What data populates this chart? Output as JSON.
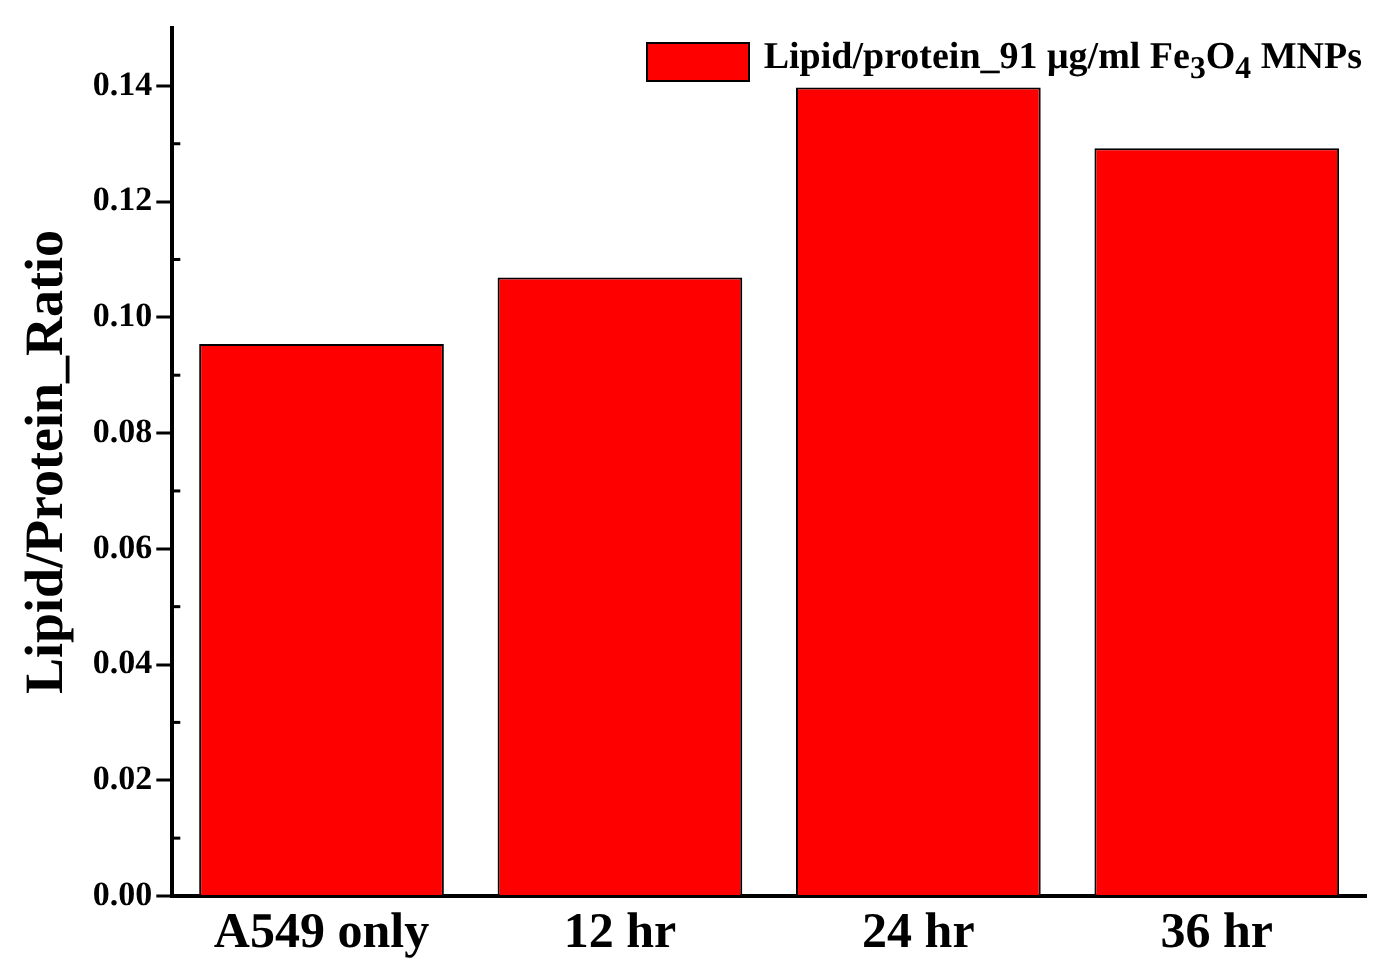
{
  "chart_data": {
    "type": "bar",
    "ylabel": "Lipid/Protein_Ratio",
    "categories": [
      "A549 only",
      "12 hr",
      "24 hr",
      "36 hr"
    ],
    "series": [
      {
        "name": "Lipid/protein_91 μg/ml Fe$_{3}$O$_{4}$ MNPs",
        "color": "#ff0000",
        "values": [
          0.0954,
          0.1069,
          0.1397,
          0.1292
        ]
      }
    ],
    "ylim": [
      0,
      0.15
    ],
    "yticks": [
      {
        "value": 0,
        "label": "0.00"
      },
      {
        "value": 0.02,
        "label": "0.02"
      },
      {
        "value": 0.04,
        "label": "0.04"
      },
      {
        "value": 0.06,
        "label": "0.06"
      },
      {
        "value": 0.08,
        "label": "0.08"
      },
      {
        "value": 0.1,
        "label": "0.10"
      },
      {
        "value": 0.12,
        "label": "0.12"
      },
      {
        "value": 0.14,
        "label": "0.14"
      }
    ],
    "grid": false,
    "legend": "top right"
  }
}
